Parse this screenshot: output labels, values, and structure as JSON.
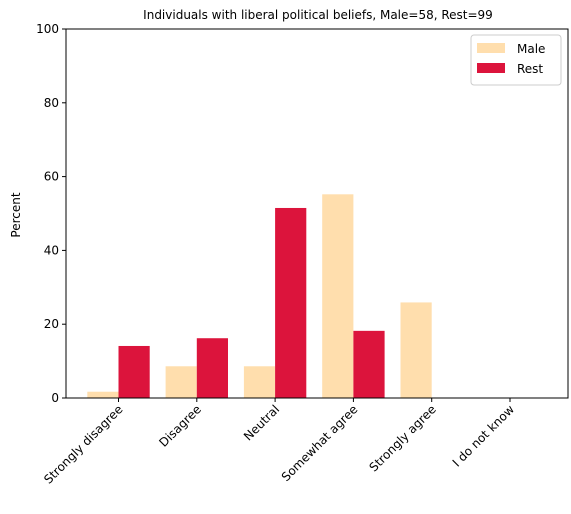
{
  "chart_data": {
    "type": "bar",
    "title": "Individuals with liberal political beliefs, Male=58, Rest=99",
    "xlabel": "",
    "ylabel": "Percent",
    "ylim": [
      0,
      100
    ],
    "yticks": [
      0,
      20,
      40,
      60,
      80,
      100
    ],
    "categories": [
      "Strongly disagree",
      "Disagree",
      "Neutral",
      "Somewhat agree",
      "Strongly agree",
      "I do not know"
    ],
    "series": [
      {
        "name": "Male",
        "color": "#FFDEAD",
        "values": [
          1.7,
          8.6,
          8.6,
          55.2,
          25.9,
          0
        ]
      },
      {
        "name": "Rest",
        "color": "#DC143C",
        "values": [
          14.1,
          16.2,
          51.5,
          18.2,
          0,
          0
        ]
      }
    ],
    "grid": false,
    "legend_position": "top-right"
  }
}
